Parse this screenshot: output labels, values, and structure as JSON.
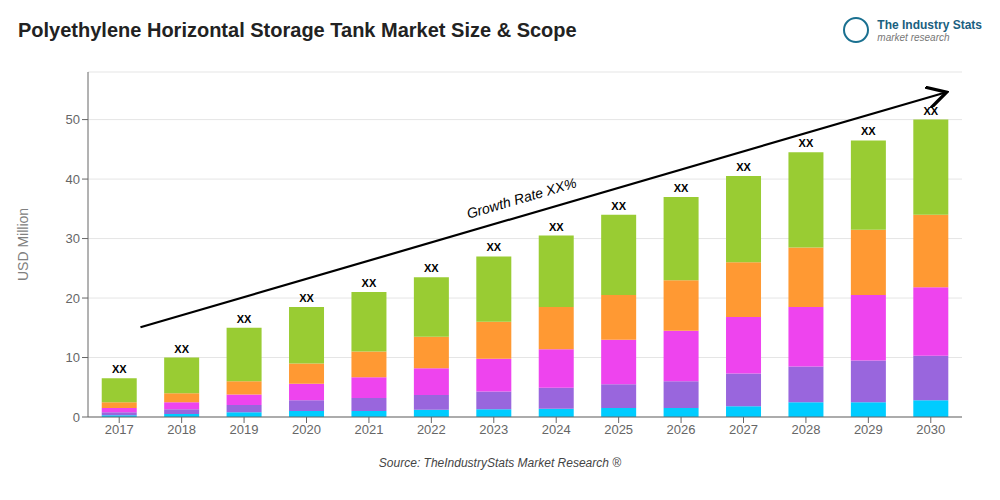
{
  "chart_data": {
    "type": "bar",
    "stacked": true,
    "title": "Polyethylene Horizontal Storage Tank Market Size & Scope",
    "ylabel": "USD Million",
    "categories": [
      "2017",
      "2018",
      "2019",
      "2020",
      "2021",
      "2022",
      "2023",
      "2024",
      "2025",
      "2026",
      "2027",
      "2028",
      "2029",
      "2030"
    ],
    "series": [
      {
        "color": "#00CCFF",
        "values": [
          0.3,
          0.5,
          0.8,
          1.0,
          1.0,
          1.2,
          1.3,
          1.4,
          1.5,
          1.5,
          1.8,
          2.5,
          2.5,
          2.8
        ]
      },
      {
        "color": "#9966DD",
        "values": [
          0.5,
          0.8,
          1.2,
          1.8,
          2.2,
          2.5,
          3.0,
          3.5,
          4.0,
          4.5,
          5.5,
          6.0,
          7.0,
          7.5
        ]
      },
      {
        "color": "#EE44EE",
        "values": [
          0.7,
          1.2,
          1.8,
          2.8,
          3.5,
          4.5,
          5.5,
          6.5,
          7.5,
          8.5,
          9.5,
          10.0,
          11.0,
          11.5
        ]
      },
      {
        "color": "#FF9933",
        "values": [
          1.0,
          1.5,
          2.2,
          3.4,
          4.3,
          5.3,
          6.2,
          7.1,
          7.5,
          8.5,
          9.2,
          10.0,
          11.0,
          12.2
        ]
      },
      {
        "color": "#99CC33",
        "values": [
          4.0,
          6.0,
          9.0,
          9.5,
          10.0,
          10.0,
          11.0,
          12.0,
          13.5,
          14.0,
          14.5,
          16.0,
          15.0,
          16.0
        ]
      }
    ],
    "ylim": [
      0,
      58
    ],
    "yticks": [
      0,
      10,
      20,
      30,
      40,
      50
    ],
    "grid": true,
    "bar_label": "XX",
    "annotations": [
      "Growth Rate XX%"
    ],
    "source": "Source: TheIndustryStats Market Research ®",
    "logo": [
      "The Industry Stats",
      "market research"
    ]
  }
}
